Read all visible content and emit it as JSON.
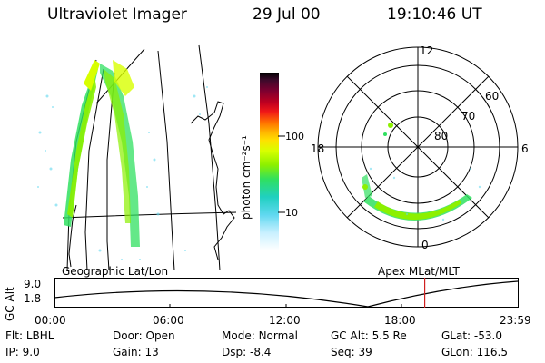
{
  "header": {
    "instrument": "Ultraviolet Imager",
    "date": "29 Jul 00",
    "time": "19:10:46 UT"
  },
  "left_panel": {
    "caption": "Geographic Lat/Lon"
  },
  "colorbar": {
    "unit_label": "photon cm⁻²s⁻¹",
    "ticks": [
      "100",
      "10"
    ],
    "colors": [
      "#000000",
      "#3a0a2a",
      "#7a0030",
      "#c00020",
      "#f01818",
      "#ff7000",
      "#ffb000",
      "#ffe000",
      "#d8ff00",
      "#8cf000",
      "#30e060",
      "#20d0c0",
      "#60d8f0",
      "#c8f0ff",
      "#ffffff"
    ],
    "levels": [
      0.0,
      0.04,
      0.1,
      0.17,
      0.22,
      0.28,
      0.33,
      0.38,
      0.44,
      0.52,
      0.6,
      0.7,
      0.8,
      0.9,
      1.0
    ]
  },
  "polar_panel": {
    "caption": "Apex MLat/MLT",
    "mlt_labels": {
      "top": "12",
      "left": "18",
      "right": "6",
      "bottom": "0"
    },
    "lat_labels": [
      "60",
      "70",
      "80"
    ]
  },
  "timeline": {
    "ylabel": "GC Alt",
    "y_ticks": [
      "9.0",
      "1.8"
    ],
    "x_ticks": [
      "00:00",
      "06:00",
      "12:00",
      "18:00",
      "23:59"
    ],
    "marker_time_fraction": 0.7992,
    "marker_color": "#d02020"
  },
  "footer": {
    "rows": [
      [
        {
          "label": "Flt:",
          "value": "LBHL"
        },
        {
          "label": "Door:",
          "value": "Open"
        },
        {
          "label": "Mode:",
          "value": "Normal"
        },
        {
          "label": "GC Alt:",
          "value": "5.5 Re"
        },
        {
          "label": "GLat:",
          "value": "-53.0"
        }
      ],
      [
        {
          "label": "IP:",
          "value": "9.0"
        },
        {
          "label": "Gain:",
          "value": "13"
        },
        {
          "label": "Dsp:",
          "value": "-8.4"
        },
        {
          "label": "Seq:",
          "value": "39"
        },
        {
          "label": "GLon:",
          "value": "116.5"
        }
      ]
    ]
  }
}
